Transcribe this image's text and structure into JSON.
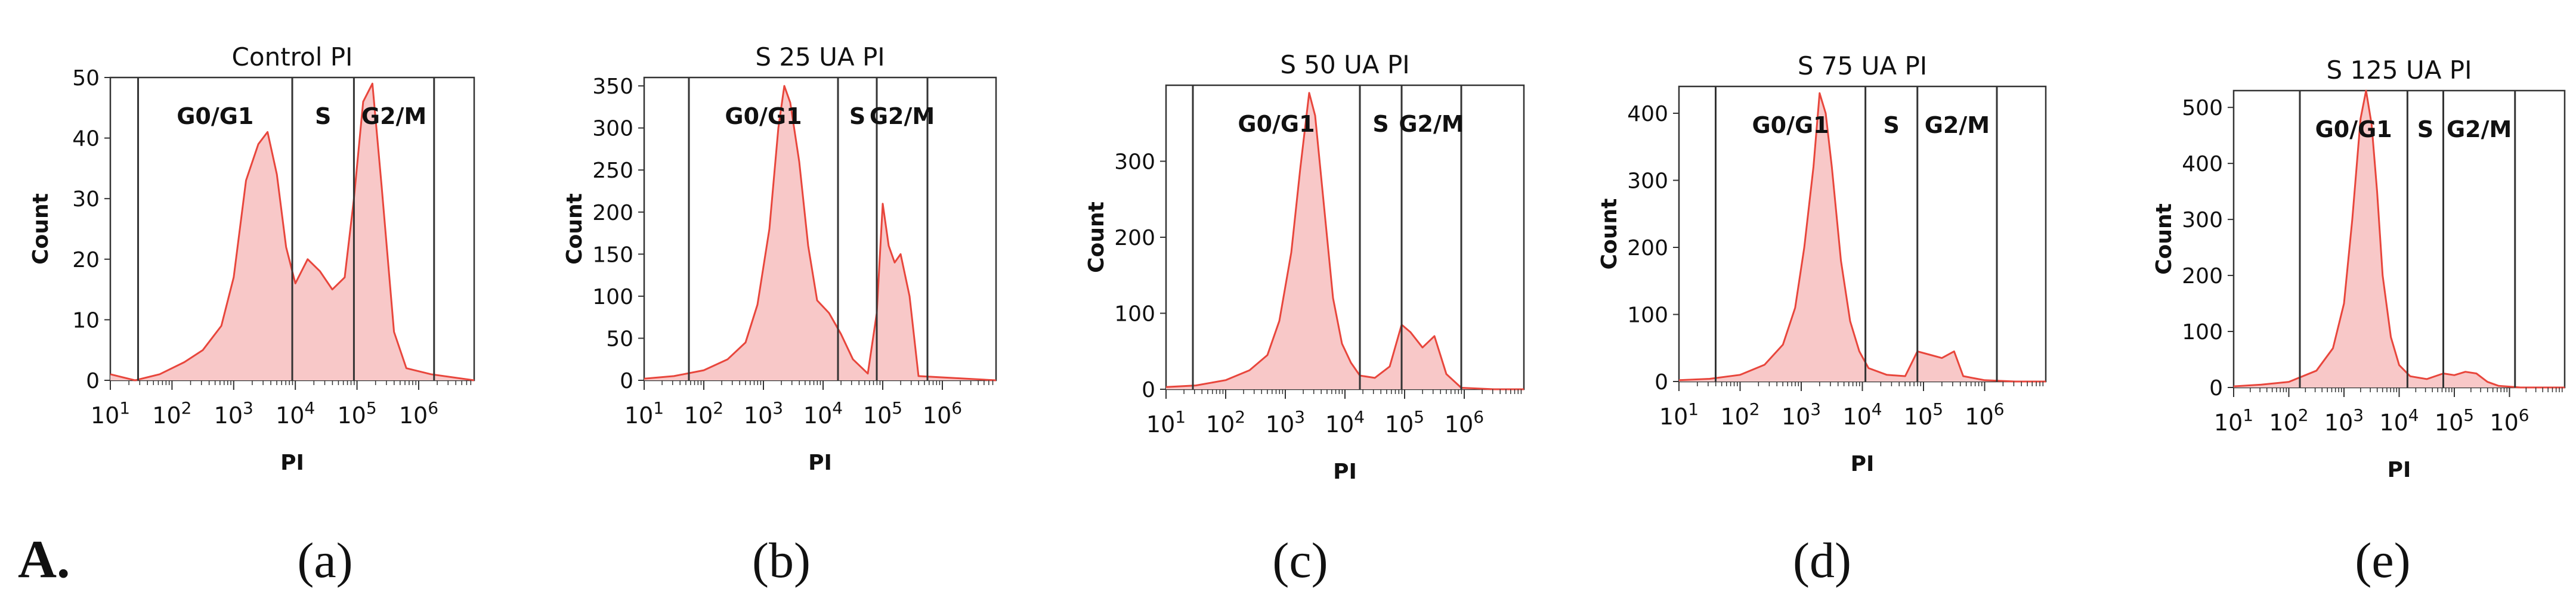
{
  "figure": {
    "panel_label": "A.",
    "colors": {
      "line": "#e8463c",
      "fill": "#f8c8c8",
      "axis": "#333333",
      "gate": "#333333"
    }
  },
  "chart_data": [
    {
      "type": "area",
      "subplot_label": "(a)",
      "title": "Control PI",
      "xlabel": "PI",
      "ylabel": "Count",
      "x_scale": "log10",
      "xlim_log": [
        1,
        6.9
      ],
      "x_ticks": [
        {
          "base": "10",
          "exp": "1"
        },
        {
          "base": "10",
          "exp": "2"
        },
        {
          "base": "10",
          "exp": "3"
        },
        {
          "base": "10",
          "exp": "4"
        },
        {
          "base": "10",
          "exp": "5"
        },
        {
          "base": "10",
          "exp": "6"
        }
      ],
      "ylim": [
        0,
        50
      ],
      "y_ticks": [
        "0",
        "10",
        "20",
        "30",
        "40",
        "50"
      ],
      "gates": [
        1.45,
        3.95,
        4.95,
        6.25
      ],
      "gate_labels": [
        "G0/G1",
        "S",
        "G2/M"
      ],
      "histogram": {
        "x_log": [
          1.0,
          1.4,
          1.8,
          2.2,
          2.5,
          2.8,
          3.0,
          3.2,
          3.4,
          3.55,
          3.7,
          3.85,
          4.0,
          4.2,
          4.4,
          4.6,
          4.8,
          4.95,
          5.1,
          5.25,
          5.4,
          5.6,
          5.8,
          6.2,
          6.9
        ],
        "counts": [
          1,
          0,
          1,
          3,
          5,
          9,
          17,
          33,
          39,
          41,
          34,
          22,
          16,
          20,
          18,
          15,
          17,
          30,
          46,
          49,
          32,
          8,
          2,
          1,
          0
        ]
      }
    },
    {
      "type": "area",
      "subplot_label": "(b)",
      "title": "S 25 UA PI",
      "xlabel": "PI",
      "ylabel": "Count",
      "x_scale": "log10",
      "xlim_log": [
        1,
        6.9
      ],
      "x_ticks": [
        {
          "base": "10",
          "exp": "1"
        },
        {
          "base": "10",
          "exp": "2"
        },
        {
          "base": "10",
          "exp": "3"
        },
        {
          "base": "10",
          "exp": "4"
        },
        {
          "base": "10",
          "exp": "5"
        },
        {
          "base": "10",
          "exp": "6"
        }
      ],
      "ylim": [
        0,
        360
      ],
      "y_ticks": [
        "0",
        "50",
        "100",
        "150",
        "200",
        "250",
        "300",
        "350"
      ],
      "gates": [
        1.75,
        4.25,
        4.9,
        5.75
      ],
      "gate_labels": [
        "G0/G1",
        "S",
        "G2/M"
      ],
      "histogram": {
        "x_log": [
          1.0,
          1.5,
          2.0,
          2.4,
          2.7,
          2.9,
          3.1,
          3.25,
          3.35,
          3.45,
          3.6,
          3.75,
          3.9,
          4.1,
          4.3,
          4.5,
          4.75,
          4.9,
          5.0,
          5.1,
          5.2,
          5.3,
          5.45,
          5.6,
          6.9
        ],
        "counts": [
          2,
          5,
          12,
          25,
          45,
          90,
          180,
          300,
          350,
          330,
          260,
          160,
          95,
          80,
          55,
          25,
          8,
          80,
          210,
          160,
          140,
          150,
          100,
          5,
          0
        ]
      }
    },
    {
      "type": "area",
      "subplot_label": "(c)",
      "title": "S 50 UA PI",
      "xlabel": "PI",
      "ylabel": "Count",
      "x_scale": "log10",
      "xlim_log": [
        1,
        7.0
      ],
      "x_ticks": [
        {
          "base": "10",
          "exp": "1"
        },
        {
          "base": "10",
          "exp": "2"
        },
        {
          "base": "10",
          "exp": "3"
        },
        {
          "base": "10",
          "exp": "4"
        },
        {
          "base": "10",
          "exp": "5"
        },
        {
          "base": "10",
          "exp": "6"
        }
      ],
      "ylim": [
        0,
        400
      ],
      "y_ticks": [
        "0",
        "100",
        "200",
        "300"
      ],
      "gates": [
        1.45,
        4.25,
        4.95,
        5.95
      ],
      "gate_labels": [
        "G0/G1",
        "S",
        "G2/M"
      ],
      "histogram": {
        "x_log": [
          1.0,
          1.5,
          2.0,
          2.4,
          2.7,
          2.9,
          3.1,
          3.25,
          3.4,
          3.5,
          3.65,
          3.8,
          3.95,
          4.1,
          4.25,
          4.5,
          4.75,
          4.95,
          5.1,
          5.3,
          5.5,
          5.7,
          5.95,
          6.5,
          7.0
        ],
        "counts": [
          3,
          5,
          12,
          25,
          45,
          90,
          180,
          290,
          390,
          360,
          240,
          120,
          60,
          35,
          18,
          15,
          30,
          85,
          75,
          55,
          70,
          20,
          2,
          0,
          0
        ]
      }
    },
    {
      "type": "area",
      "subplot_label": "(d)",
      "title": "S 75 UA PI",
      "xlabel": "PI",
      "ylabel": "Count",
      "x_scale": "log10",
      "xlim_log": [
        1,
        7.0
      ],
      "x_ticks": [
        {
          "base": "10",
          "exp": "1"
        },
        {
          "base": "10",
          "exp": "2"
        },
        {
          "base": "10",
          "exp": "3"
        },
        {
          "base": "10",
          "exp": "4"
        },
        {
          "base": "10",
          "exp": "5"
        },
        {
          "base": "10",
          "exp": "6"
        }
      ],
      "ylim": [
        0,
        440
      ],
      "y_ticks": [
        "0",
        "100",
        "200",
        "300",
        "400"
      ],
      "gates": [
        1.6,
        4.05,
        4.9,
        6.2
      ],
      "gate_labels": [
        "G0/G1",
        "S",
        "G2/M"
      ],
      "histogram": {
        "x_log": [
          1.0,
          1.5,
          2.0,
          2.4,
          2.7,
          2.9,
          3.05,
          3.2,
          3.3,
          3.4,
          3.5,
          3.65,
          3.8,
          3.95,
          4.1,
          4.4,
          4.7,
          4.9,
          5.1,
          5.3,
          5.5,
          5.65,
          6.0,
          6.5,
          7.0
        ],
        "counts": [
          2,
          4,
          10,
          25,
          55,
          110,
          200,
          320,
          430,
          400,
          320,
          180,
          90,
          45,
          20,
          10,
          8,
          45,
          40,
          35,
          45,
          8,
          2,
          0,
          0
        ]
      }
    },
    {
      "type": "area",
      "subplot_label": "(e)",
      "title": "S 125 UA PI",
      "xlabel": "PI",
      "ylabel": "Count",
      "x_scale": "log10",
      "xlim_log": [
        1,
        7.0
      ],
      "x_ticks": [
        {
          "base": "10",
          "exp": "1"
        },
        {
          "base": "10",
          "exp": "2"
        },
        {
          "base": "10",
          "exp": "3"
        },
        {
          "base": "10",
          "exp": "4"
        },
        {
          "base": "10",
          "exp": "5"
        },
        {
          "base": "10",
          "exp": "6"
        }
      ],
      "ylim": [
        0,
        530
      ],
      "y_ticks": [
        "0",
        "100",
        "200",
        "300",
        "400",
        "500"
      ],
      "gates": [
        2.2,
        4.15,
        4.8,
        6.1
      ],
      "gate_labels": [
        "G0/G1",
        "S",
        "G2/M"
      ],
      "histogram": {
        "x_log": [
          1.0,
          1.5,
          2.0,
          2.5,
          2.8,
          3.0,
          3.15,
          3.3,
          3.4,
          3.5,
          3.6,
          3.7,
          3.85,
          4.0,
          4.2,
          4.5,
          4.8,
          5.0,
          5.2,
          5.4,
          5.6,
          5.8,
          6.2,
          6.6,
          7.0
        ],
        "counts": [
          2,
          5,
          10,
          30,
          70,
          150,
          300,
          480,
          530,
          470,
          350,
          200,
          90,
          40,
          20,
          15,
          25,
          22,
          28,
          25,
          10,
          3,
          0,
          0,
          0
        ]
      }
    }
  ]
}
